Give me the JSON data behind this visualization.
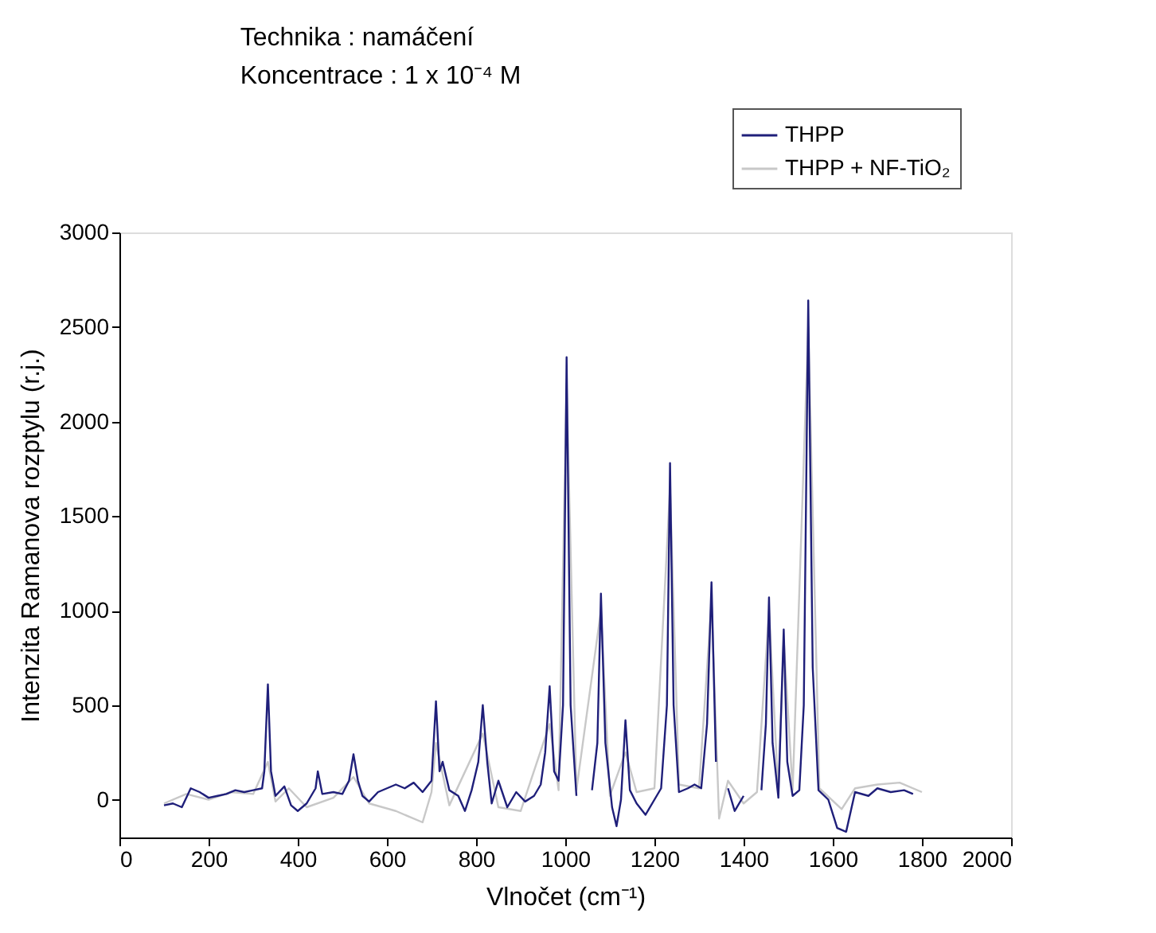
{
  "chart_data": {
    "type": "line",
    "title": "Technika : namáčení",
    "subtitle": "Koncentrace : 1 x 10⁻⁴ M",
    "xlabel": "Vlnočet (cm⁻¹)",
    "ylabel": "Intenzita Ramanova rozptylu (r.j.)",
    "xlim": [
      0,
      2000
    ],
    "xticks": [
      0,
      200,
      400,
      600,
      800,
      1000,
      1200,
      1400,
      1600,
      1800,
      2000
    ],
    "ylim": [
      -200,
      3000
    ],
    "yticks": [
      0,
      500,
      1000,
      1500,
      2000,
      2500,
      3000
    ],
    "grid": false,
    "legend": "top right",
    "marker": "none",
    "line_style": "solid",
    "series": [
      {
        "name": "THPP",
        "color": "#1f1f7a",
        "x": [
          100,
          120,
          140,
          160,
          180,
          200,
          220,
          240,
          260,
          280,
          300,
          320,
          325,
          333,
          340,
          350,
          370,
          385,
          400,
          420,
          440,
          445,
          455,
          480,
          500,
          515,
          525,
          535,
          545,
          560,
          580,
          600,
          620,
          640,
          660,
          680,
          700,
          710,
          718,
          725,
          740,
          760,
          775,
          790,
          805,
          815,
          825,
          835,
          850,
          870,
          890,
          910,
          930,
          945,
          955,
          965,
          975,
          985,
          995,
          1003,
          1012,
          1025,
          1045,
          1060,
          1072,
          1080,
          1090,
          1105,
          1115,
          1125,
          1135,
          1145,
          1160,
          1180,
          1200,
          1215,
          1228,
          1235,
          1243,
          1255,
          1275,
          1290,
          1305,
          1318,
          1328,
          1338,
          1348,
          1365,
          1380,
          1400,
          1420,
          1440,
          1450,
          1457,
          1465,
          1478,
          1490,
          1498,
          1510,
          1525,
          1535,
          1545,
          1555,
          1568,
          1590,
          1610,
          1630,
          1650,
          1680,
          1700,
          1730,
          1760,
          1780
        ],
        "values": [
          -30,
          -20,
          -40,
          60,
          40,
          10,
          20,
          30,
          50,
          40,
          50,
          60,
          150,
          610,
          150,
          20,
          70,
          -30,
          -60,
          -20,
          60,
          150,
          30,
          40,
          30,
          100,
          240,
          100,
          20,
          -10,
          40,
          60,
          80,
          60,
          90,
          40,
          100,
          520,
          150,
          200,
          50,
          20,
          -60,
          50,
          200,
          500,
          200,
          -20,
          100,
          -40,
          40,
          -10,
          20,
          80,
          250,
          600,
          150,
          100,
          500,
          2340,
          500,
          20,
          null,
          50,
          300,
          1090,
          300,
          -40,
          -140,
          0,
          420,
          50,
          -20,
          -80,
          0,
          60,
          500,
          1780,
          500,
          40,
          60,
          80,
          60,
          400,
          1150,
          200,
          null,
          60,
          -60,
          20,
          null,
          50,
          400,
          1070,
          300,
          10,
          900,
          200,
          20,
          50,
          500,
          2640,
          700,
          50,
          0,
          -150,
          -170,
          40,
          20,
          60,
          40,
          50,
          30
        ]
      },
      {
        "name": "THPP + NF-TiO₂",
        "color": "#c8c8c8",
        "x": [
          100,
          150,
          200,
          250,
          300,
          333,
          350,
          380,
          420,
          480,
          525,
          560,
          620,
          680,
          700,
          710,
          740,
          815,
          850,
          900,
          965,
          985,
          1003,
          1025,
          1080,
          1100,
          1135,
          1160,
          1200,
          1235,
          1255,
          1300,
          1328,
          1345,
          1365,
          1400,
          1430,
          1457,
          1478,
          1490,
          1510,
          1545,
          1570,
          1620,
          1650,
          1700,
          1750,
          1800
        ],
        "values": [
          -20,
          30,
          0,
          40,
          30,
          200,
          -10,
          60,
          -40,
          10,
          120,
          -20,
          -60,
          -120,
          40,
          300,
          -30,
          350,
          -40,
          -60,
          400,
          50,
          2200,
          50,
          1000,
          20,
          250,
          40,
          60,
          1650,
          80,
          60,
          1050,
          -100,
          100,
          -20,
          40,
          1000,
          40,
          850,
          50,
          2500,
          60,
          -50,
          60,
          80,
          90,
          40
        ]
      }
    ]
  }
}
